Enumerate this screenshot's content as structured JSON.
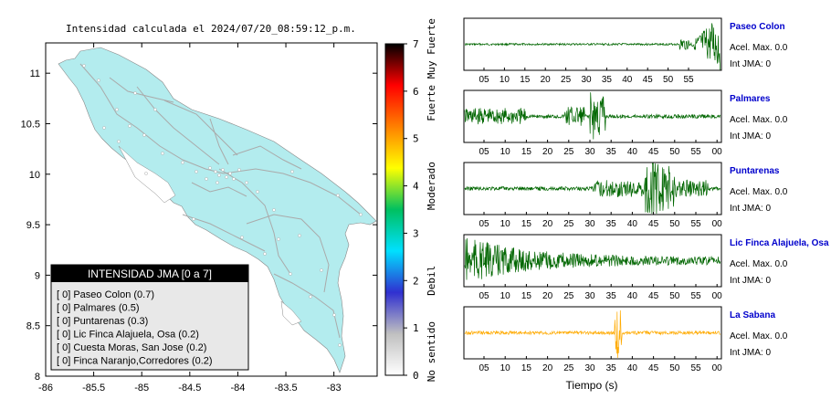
{
  "map": {
    "title": "Intensidad calculada el 2024/07/20_08:59:12_p.m.",
    "x_ticks": [
      "-86",
      "-85.5",
      "-85",
      "-84.5",
      "-84",
      "-83.5",
      "-83"
    ],
    "x_values": [
      -86,
      -85.5,
      -85,
      -84.5,
      -84,
      -83.5,
      -83
    ],
    "y_ticks": [
      "11",
      "10.5",
      "10",
      "9.5",
      "9",
      "8.5",
      "8"
    ],
    "y_values": [
      11,
      10.5,
      10,
      9.5,
      9,
      8.5,
      8
    ],
    "xlim": [
      -86,
      -82.55
    ],
    "ylim": [
      8,
      11.3
    ],
    "land_color": "#b3ecee",
    "road_color": "#aaaaaa"
  },
  "legend": {
    "title": "INTENSIDAD JMA [0 a 7]",
    "items": [
      "[ 0]  Paseo Colon (0.7)",
      "[ 0]  Palmares (0.5)",
      "[ 0]  Puntarenas (0.3)",
      "[ 0]  Lic Finca Alajuela, Osa (0.2)",
      "[ 0]  Cuesta Moras, San Jose (0.2)",
      "[ 0]  Finca Naranjo,Corredores (0.2)"
    ]
  },
  "colorbar": {
    "ticks": [
      "0",
      "1",
      "2",
      "3",
      "4",
      "5",
      "6",
      "7"
    ],
    "tick_values": [
      0,
      1,
      2,
      3,
      4,
      5,
      6,
      7
    ],
    "labels": [
      "No sentido",
      "Debil",
      "Moderado",
      "Fuerte",
      "Muy Fuerte"
    ],
    "label_values": [
      0.5,
      2,
      4,
      5.75,
      6.9
    ],
    "stops": [
      "#ffffff",
      "#c0c0c0",
      "#3030d0",
      "#00e0ff",
      "#00c060",
      "#ffff00",
      "#ff8000",
      "#ff0000",
      "#000000"
    ]
  },
  "seismograms": {
    "xlabel": "Tiempo (s)",
    "stations": [
      {
        "name": "Paseo Colon",
        "acel": "Acel. Max. 0.0",
        "int": "Int JMA: 0",
        "ticks": [
          "05",
          "10",
          "15",
          "20",
          "25",
          "30",
          "35",
          "40",
          "45",
          "50",
          "55"
        ],
        "color": "#006600"
      },
      {
        "name": "Palmares",
        "acel": "Acel. Max. 0.0",
        "int": "Int JMA: 0",
        "ticks": [
          "05",
          "10",
          "15",
          "20",
          "25",
          "30",
          "35",
          "40",
          "45",
          "50",
          "55",
          "00"
        ],
        "color": "#006600"
      },
      {
        "name": "Puntarenas",
        "acel": "Acel. Max. 0.0",
        "int": "Int JMA: 0",
        "ticks": [
          "05",
          "10",
          "15",
          "20",
          "25",
          "30",
          "35",
          "40",
          "45",
          "50",
          "55",
          "00"
        ],
        "color": "#006600"
      },
      {
        "name": "Lic Finca Alajuela, Osa",
        "acel": "Acel. Max. 0.0",
        "int": "Int JMA: 0",
        "ticks": [
          "05",
          "10",
          "15",
          "20",
          "25",
          "30",
          "35",
          "40",
          "45",
          "50",
          "55",
          "00"
        ],
        "color": "#006600"
      },
      {
        "name": "La Sabana",
        "acel": "Acel. Max. 0.0",
        "int": "Int JMA: 0",
        "ticks": [
          "05",
          "10",
          "15",
          "20",
          "25",
          "30",
          "35",
          "40",
          "45",
          "50",
          "55",
          "00"
        ],
        "color": "#ffaa00"
      }
    ]
  },
  "chart_data": [
    {
      "type": "scatter",
      "title": "Intensidad calculada el 2024/07/20_08:59:12_p.m.",
      "xlim": [
        -86,
        -82.55
      ],
      "ylim": [
        8,
        11.3
      ],
      "grid": false
    },
    {
      "type": "line",
      "xlabel": "Tiempo (s)",
      "series": [
        {
          "name": "Paseo Colon"
        },
        {
          "name": "Palmares"
        },
        {
          "name": "Puntarenas"
        },
        {
          "name": "Lic Finca Alajuela, Osa"
        },
        {
          "name": "La Sabana"
        }
      ]
    }
  ]
}
